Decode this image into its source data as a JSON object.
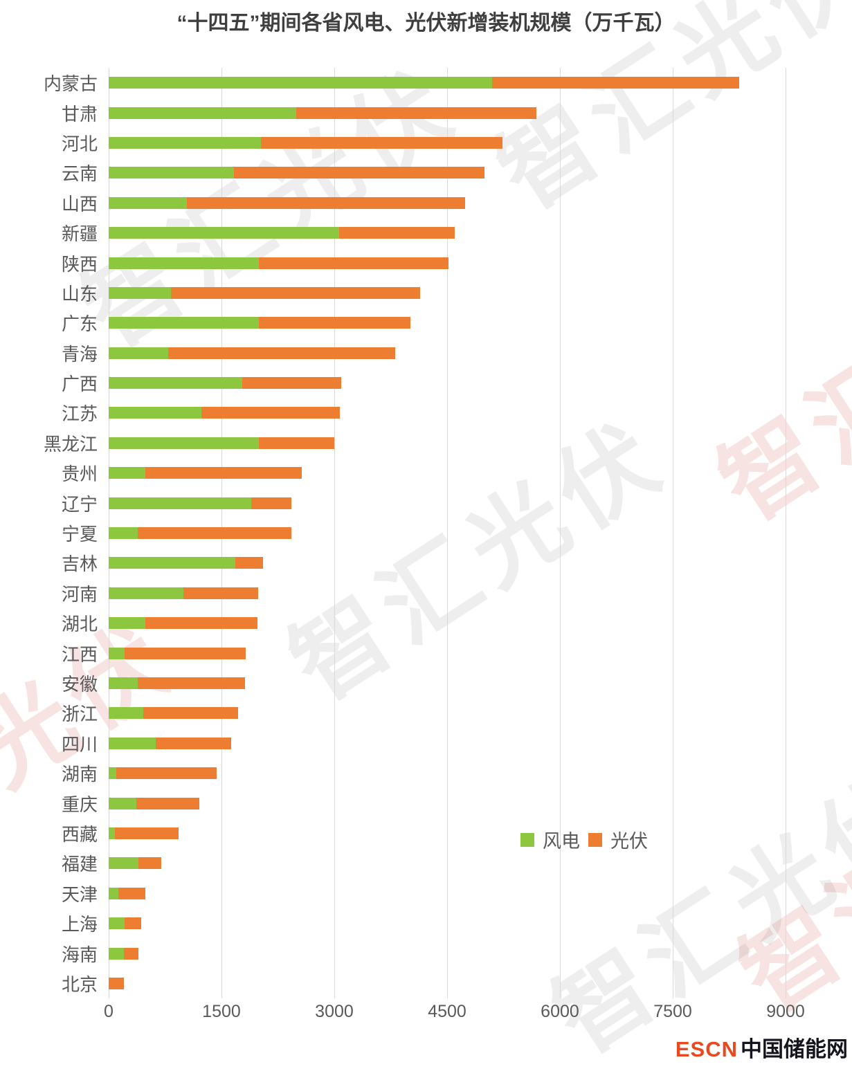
{
  "title": "“十四五”期间各省风电、光伏新增装机规模（万千瓦）",
  "watermark_text": "智汇光伏",
  "legend": {
    "wind": "风电",
    "solar": "光伏"
  },
  "logo": {
    "escn": "ESCN",
    "site": "中国储能网"
  },
  "colors": {
    "wind": "#8dc63f",
    "solar": "#ed7d31",
    "grid": "#d9d9d9",
    "axis_text": "#595959",
    "title_text": "#3f3f3f"
  },
  "chart_data": {
    "type": "bar",
    "orientation": "horizontal",
    "stacked": true,
    "title": "“十四五”期间各省风电、光伏新增装机规模（万千瓦）",
    "xlabel": "",
    "ylabel": "",
    "xlim": [
      0,
      9000
    ],
    "xticks": [
      0,
      1500,
      3000,
      4500,
      6000,
      7500,
      9000
    ],
    "grid": true,
    "legend_position": "inside-lower-right",
    "categories": [
      "内蒙古",
      "甘肃",
      "河北",
      "云南",
      "山西",
      "新疆",
      "陕西",
      "山东",
      "广东",
      "青海",
      "广西",
      "江苏",
      "黑龙江",
      "贵州",
      "辽宁",
      "宁夏",
      "吉林",
      "河南",
      "湖北",
      "江西",
      "安徽",
      "浙江",
      "四川",
      "湖南",
      "重庆",
      "西藏",
      "福建",
      "天津",
      "上海",
      "海南",
      "北京"
    ],
    "series": [
      {
        "key": "wind",
        "name": "风电",
        "color": "#8dc63f",
        "values": [
          5100,
          2490,
          2020,
          1670,
          1040,
          3060,
          2000,
          830,
          2000,
          790,
          1780,
          1230,
          2000,
          490,
          1900,
          390,
          1680,
          990,
          490,
          210,
          390,
          460,
          630,
          100,
          370,
          80,
          400,
          130,
          210,
          200,
          0
        ]
      },
      {
        "key": "solar",
        "name": "光伏",
        "color": "#ed7d31",
        "values": [
          3280,
          3200,
          3220,
          3330,
          3700,
          1540,
          2520,
          3310,
          2010,
          3020,
          1310,
          1840,
          1000,
          2080,
          530,
          2040,
          370,
          1000,
          1490,
          1610,
          1420,
          1260,
          1000,
          1340,
          840,
          850,
          300,
          360,
          220,
          200,
          200
        ]
      }
    ]
  }
}
